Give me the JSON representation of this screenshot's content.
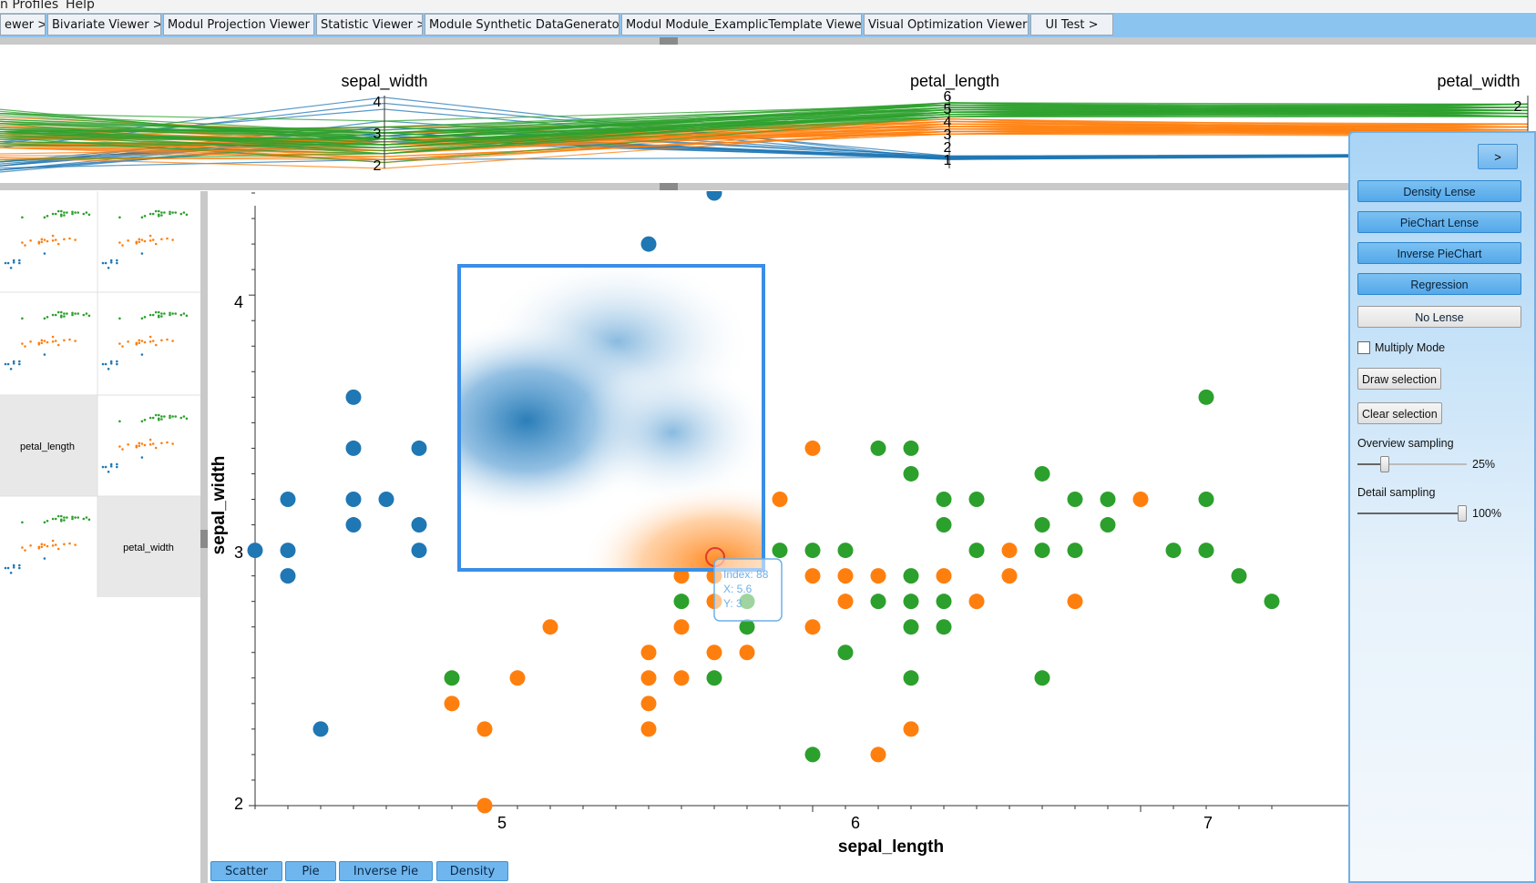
{
  "menu": {
    "items": [
      "n Profiles",
      "Help"
    ]
  },
  "tabs": [
    "ewer >>",
    "Bivariate Viewer >>",
    "Modul Projection Viewer >>",
    "Statistic Viewer >>",
    "Module Synthetic DataGenerator >>",
    "Modul Module_ExamplicTemplate Viewer >>",
    "Visual Optimization Viewer >>",
    "UI Test >"
  ],
  "parallel_coords": {
    "axes": [
      {
        "label": "sepal_width",
        "ticks": [
          "4",
          "3",
          "2"
        ]
      },
      {
        "label": "petal_length",
        "ticks": [
          "6",
          "5",
          "4",
          "3",
          "2",
          "1"
        ]
      },
      {
        "label": "petal_width",
        "ticks": [
          "2"
        ]
      }
    ]
  },
  "scatter_matrix": {
    "labels": [
      "petal_length",
      "petal_width"
    ]
  },
  "main_plot": {
    "xlabel": "sepal_length",
    "ylabel": "sepal_width",
    "x_ticks": [
      "5",
      "6",
      "7"
    ],
    "y_ticks": [
      "4",
      "3",
      "2"
    ],
    "tooltip": {
      "index": "Index: 88",
      "x": "X: 5.6",
      "y": "Y: 3"
    }
  },
  "mode_buttons": [
    "Scatter",
    "Pie",
    "Inverse Pie",
    "Density"
  ],
  "lens_panel": {
    "toggle": ">",
    "lenses": [
      "Density Lense",
      "PieChart Lense",
      "Inverse PieChart",
      "Regression",
      "No Lense"
    ],
    "multiply_mode": "Multiply Mode",
    "draw_selection": "Draw selection",
    "clear_selection": "Clear selection",
    "overview_label": "Overview sampling",
    "overview_value": "25%",
    "overview_fraction": 0.25,
    "detail_label": "Detail sampling",
    "detail_value": "100%",
    "detail_fraction": 1.0
  },
  "colors": {
    "setosa": "#1f77b4",
    "versicolor": "#ff7f0e",
    "virginica": "#2ca02c",
    "accent": "#3a8ee6"
  },
  "chart_data": {
    "type": "scatter",
    "xlabel": "sepal_length",
    "ylabel": "sepal_width",
    "xlim": [
      4.3,
      7.4
    ],
    "ylim": [
      2.0,
      4.4
    ],
    "series": [
      {
        "color": "#1f77b4",
        "points": [
          [
            4.3,
            3.0
          ],
          [
            4.4,
            3.2
          ],
          [
            4.4,
            3.0
          ],
          [
            4.4,
            2.9
          ],
          [
            4.5,
            2.3
          ],
          [
            4.6,
            3.6
          ],
          [
            4.6,
            3.4
          ],
          [
            4.6,
            3.2
          ],
          [
            4.6,
            3.1
          ],
          [
            4.7,
            3.2
          ],
          [
            4.8,
            3.4
          ],
          [
            4.8,
            3.1
          ],
          [
            4.8,
            3.0
          ],
          [
            5.5,
            4.2
          ],
          [
            5.7,
            4.4
          ],
          [
            5.8,
            4.0
          ]
        ]
      },
      {
        "color": "#ff7f0e",
        "points": [
          [
            4.9,
            2.4
          ],
          [
            5.0,
            2.3
          ],
          [
            5.0,
            2.0
          ],
          [
            5.1,
            2.5
          ],
          [
            5.2,
            2.7
          ],
          [
            5.5,
            2.6
          ],
          [
            5.5,
            2.5
          ],
          [
            5.5,
            2.4
          ],
          [
            5.5,
            2.3
          ],
          [
            5.6,
            3.0
          ],
          [
            5.6,
            2.9
          ],
          [
            5.6,
            2.7
          ],
          [
            5.6,
            2.5
          ],
          [
            5.7,
            2.9
          ],
          [
            5.7,
            2.8
          ],
          [
            5.7,
            2.6
          ],
          [
            5.8,
            2.6
          ],
          [
            5.9,
            3.2
          ],
          [
            6.0,
            3.4
          ],
          [
            6.0,
            2.9
          ],
          [
            6.0,
            2.7
          ],
          [
            6.1,
            2.9
          ],
          [
            6.1,
            2.8
          ],
          [
            6.2,
            2.9
          ],
          [
            6.2,
            2.2
          ],
          [
            6.3,
            2.3
          ],
          [
            6.4,
            2.9
          ],
          [
            6.5,
            2.8
          ],
          [
            6.6,
            3.0
          ],
          [
            6.6,
            2.9
          ],
          [
            6.8,
            2.8
          ],
          [
            7.0,
            3.2
          ]
        ]
      },
      {
        "color": "#2ca02c",
        "points": [
          [
            4.9,
            2.5
          ],
          [
            5.6,
            2.8
          ],
          [
            5.7,
            2.5
          ],
          [
            5.8,
            2.8
          ],
          [
            5.8,
            2.7
          ],
          [
            5.9,
            3.0
          ],
          [
            6.0,
            3.0
          ],
          [
            6.0,
            2.2
          ],
          [
            6.1,
            3.0
          ],
          [
            6.1,
            2.6
          ],
          [
            6.2,
            3.4
          ],
          [
            6.2,
            2.8
          ],
          [
            6.3,
            3.4
          ],
          [
            6.3,
            3.3
          ],
          [
            6.3,
            2.9
          ],
          [
            6.3,
            2.8
          ],
          [
            6.3,
            2.7
          ],
          [
            6.3,
            2.5
          ],
          [
            6.4,
            3.2
          ],
          [
            6.4,
            3.1
          ],
          [
            6.4,
            2.8
          ],
          [
            6.4,
            2.7
          ],
          [
            6.5,
            3.2
          ],
          [
            6.5,
            3.0
          ],
          [
            6.7,
            3.3
          ],
          [
            6.7,
            3.1
          ],
          [
            6.7,
            3.0
          ],
          [
            6.7,
            2.5
          ],
          [
            6.8,
            3.2
          ],
          [
            6.8,
            3.0
          ],
          [
            6.9,
            3.2
          ],
          [
            6.9,
            3.1
          ],
          [
            7.1,
            3.0
          ],
          [
            7.2,
            3.6
          ],
          [
            7.2,
            3.2
          ],
          [
            7.2,
            3.0
          ],
          [
            7.3,
            2.9
          ],
          [
            7.4,
            2.8
          ]
        ]
      }
    ]
  }
}
